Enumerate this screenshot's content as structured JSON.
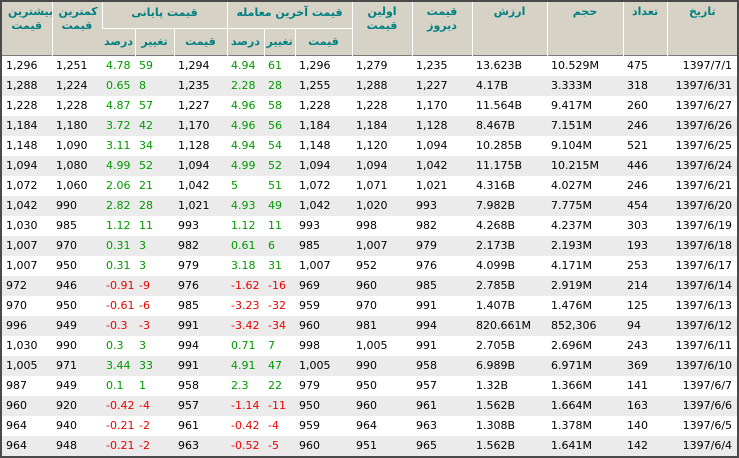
{
  "colors": {
    "header_bg": "#d6d2c6",
    "header_text": "#008080",
    "row_alt_bg": "#ebebeb",
    "positive": "#009900",
    "negative": "#ee0000",
    "text": "#000000",
    "frame_border": "#4a4a4a",
    "header_divider": "#ffffff",
    "header_bottom_line": "#7a7a7a"
  },
  "table": {
    "groups": [
      {
        "label": "قیمت پایانی"
      },
      {
        "label": "قیمت آخرین معامله"
      }
    ],
    "columns": [
      {
        "key": "highest-price",
        "label": "بیشترین قیمت"
      },
      {
        "key": "lowest-price",
        "label": "کمترین قیمت"
      },
      {
        "key": "closing-percent",
        "label": "درصد"
      },
      {
        "key": "closing-change",
        "label": "تغییر"
      },
      {
        "key": "closing-price",
        "label": "قیمت"
      },
      {
        "key": "last-trade-percent",
        "label": "درصد"
      },
      {
        "key": "last-trade-change",
        "label": "تغییر"
      },
      {
        "key": "last-trade-price",
        "label": "قیمت"
      },
      {
        "key": "first-price",
        "label": "اولین قیمت"
      },
      {
        "key": "yesterday-price",
        "label": "قیمت دیروز"
      },
      {
        "key": "value",
        "label": "ارزش"
      },
      {
        "key": "volume",
        "label": "حجم"
      },
      {
        "key": "count",
        "label": "تعداد"
      },
      {
        "key": "date",
        "label": "تاریخ"
      }
    ],
    "signed_column_indexes": [
      2,
      3,
      5,
      6
    ],
    "rows": [
      [
        "1,296",
        "1,251",
        "4.78",
        "59",
        "1,294",
        "4.94",
        "61",
        "1,296",
        "1,279",
        "1,235",
        "13.623B",
        "10.529M",
        "475",
        "1397/7/1"
      ],
      [
        "1,288",
        "1,224",
        "0.65",
        "8",
        "1,235",
        "2.28",
        "28",
        "1,255",
        "1,288",
        "1,227",
        "4.17B",
        "3.333M",
        "318",
        "1397/6/31"
      ],
      [
        "1,228",
        "1,228",
        "4.87",
        "57",
        "1,227",
        "4.96",
        "58",
        "1,228",
        "1,228",
        "1,170",
        "11.564B",
        "9.417M",
        "260",
        "1397/6/27"
      ],
      [
        "1,184",
        "1,180",
        "3.72",
        "42",
        "1,170",
        "4.96",
        "56",
        "1,184",
        "1,184",
        "1,128",
        "8.467B",
        "7.151M",
        "246",
        "1397/6/26"
      ],
      [
        "1,148",
        "1,090",
        "3.11",
        "34",
        "1,128",
        "4.94",
        "54",
        "1,148",
        "1,120",
        "1,094",
        "10.285B",
        "9.104M",
        "521",
        "1397/6/25"
      ],
      [
        "1,094",
        "1,080",
        "4.99",
        "52",
        "1,094",
        "4.99",
        "52",
        "1,094",
        "1,094",
        "1,042",
        "11.175B",
        "10.215M",
        "446",
        "1397/6/24"
      ],
      [
        "1,072",
        "1,060",
        "2.06",
        "21",
        "1,042",
        "5",
        "51",
        "1,072",
        "1,071",
        "1,021",
        "4.316B",
        "4.027M",
        "246",
        "1397/6/21"
      ],
      [
        "1,042",
        "990",
        "2.82",
        "28",
        "1,021",
        "4.93",
        "49",
        "1,042",
        "1,020",
        "993",
        "7.982B",
        "7.775M",
        "454",
        "1397/6/20"
      ],
      [
        "1,030",
        "985",
        "1.12",
        "11",
        "993",
        "1.12",
        "11",
        "993",
        "998",
        "982",
        "4.268B",
        "4.237M",
        "303",
        "1397/6/19"
      ],
      [
        "1,007",
        "970",
        "0.31",
        "3",
        "982",
        "0.61",
        "6",
        "985",
        "1,007",
        "979",
        "2.173B",
        "2.193M",
        "193",
        "1397/6/18"
      ],
      [
        "1,007",
        "950",
        "0.31",
        "3",
        "979",
        "3.18",
        "31",
        "1,007",
        "952",
        "976",
        "4.099B",
        "4.171M",
        "253",
        "1397/6/17"
      ],
      [
        "972",
        "946",
        "-0.91",
        "-9",
        "976",
        "-1.62",
        "-16",
        "969",
        "960",
        "985",
        "2.785B",
        "2.919M",
        "214",
        "1397/6/14"
      ],
      [
        "970",
        "950",
        "-0.61",
        "-6",
        "985",
        "-3.23",
        "-32",
        "959",
        "970",
        "991",
        "1.407B",
        "1.476M",
        "125",
        "1397/6/13"
      ],
      [
        "996",
        "949",
        "-0.3",
        "-3",
        "991",
        "-3.42",
        "-34",
        "960",
        "981",
        "994",
        "820.661M",
        "852,306",
        "94",
        "1397/6/12"
      ],
      [
        "1,030",
        "990",
        "0.3",
        "3",
        "994",
        "0.71",
        "7",
        "998",
        "1,005",
        "991",
        "2.705B",
        "2.696M",
        "243",
        "1397/6/11"
      ],
      [
        "1,005",
        "971",
        "3.44",
        "33",
        "991",
        "4.91",
        "47",
        "1,005",
        "990",
        "958",
        "6.989B",
        "6.971M",
        "369",
        "1397/6/10"
      ],
      [
        "987",
        "949",
        "0.1",
        "1",
        "958",
        "2.3",
        "22",
        "979",
        "950",
        "957",
        "1.32B",
        "1.366M",
        "141",
        "1397/6/7"
      ],
      [
        "960",
        "920",
        "-0.42",
        "-4",
        "957",
        "-1.14",
        "-11",
        "950",
        "960",
        "961",
        "1.562B",
        "1.664M",
        "163",
        "1397/6/6"
      ],
      [
        "964",
        "940",
        "-0.21",
        "-2",
        "961",
        "-0.42",
        "-4",
        "959",
        "964",
        "963",
        "1.308B",
        "1.378M",
        "140",
        "1397/6/5"
      ],
      [
        "964",
        "948",
        "-0.21",
        "-2",
        "963",
        "-0.52",
        "-5",
        "960",
        "951",
        "965",
        "1.562B",
        "1.641M",
        "142",
        "1397/6/4"
      ]
    ]
  }
}
